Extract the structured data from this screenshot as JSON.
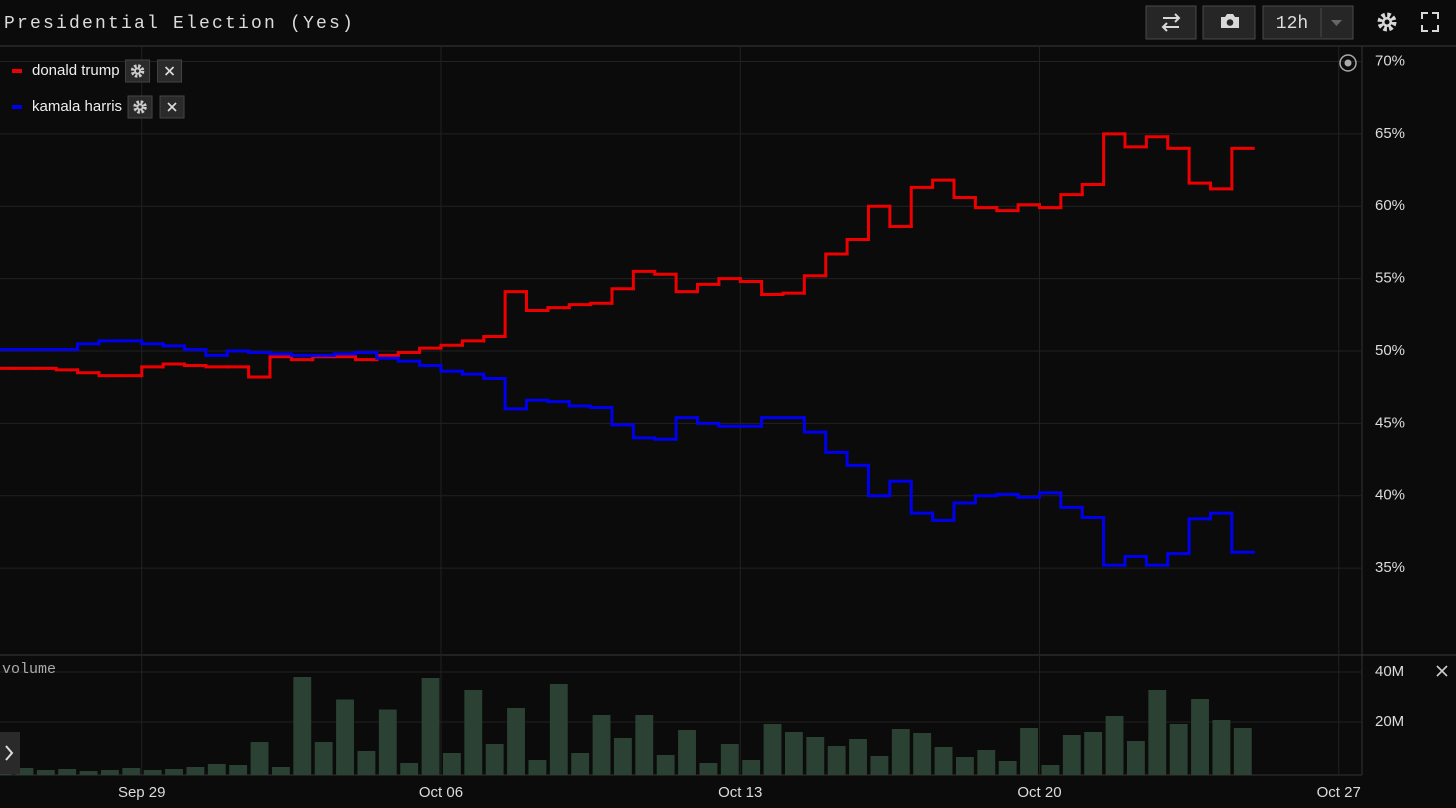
{
  "toolbar": {
    "interval": "12h"
  },
  "chart_data": [
    {
      "type": "line",
      "title": "Presidential Election (Yes)",
      "categories": [
        null,
        null,
        null,
        null,
        null,
        null,
        null,
        "Sep 29",
        null,
        null,
        null,
        null,
        null,
        null,
        null,
        null,
        null,
        null,
        null,
        null,
        null,
        "Oct 06",
        null,
        null,
        null,
        null,
        null,
        null,
        null,
        null,
        null,
        null,
        null,
        null,
        null,
        "Oct 13",
        null,
        null,
        null,
        null,
        null,
        null,
        null,
        null,
        null,
        null,
        null,
        null,
        null,
        "Oct 20",
        null,
        null,
        null,
        null,
        null,
        null,
        null,
        null,
        null,
        null,
        null,
        null,
        null,
        "Oct 27"
      ],
      "series": [
        {
          "name": "donald trump",
          "color": "#ee0000",
          "values": [
            48.8,
            48.8,
            48.8,
            48.7,
            48.5,
            48.3,
            48.3,
            48.9,
            49.1,
            49.0,
            48.9,
            48.9,
            48.2,
            49.6,
            49.4,
            49.6,
            49.6,
            49.4,
            49.7,
            49.9,
            50.2,
            50.4,
            50.7,
            51.0,
            54.1,
            52.8,
            53.0,
            53.2,
            53.3,
            54.3,
            55.5,
            55.3,
            54.1,
            54.6,
            55.0,
            54.8,
            53.9,
            54.0,
            55.2,
            56.7,
            57.7,
            60.0,
            58.6,
            61.3,
            61.8,
            60.6,
            59.9,
            59.7,
            60.1,
            59.9,
            60.8,
            61.5,
            65.0,
            64.1,
            64.8,
            64.0,
            61.6,
            61.2,
            64.0,
            null,
            null,
            null,
            null,
            null
          ]
        },
        {
          "name": "kamala harris",
          "color": "#0000ee",
          "values": [
            50.1,
            50.1,
            50.1,
            50.1,
            50.5,
            50.7,
            50.7,
            50.5,
            50.35,
            50.1,
            49.7,
            50.0,
            49.9,
            49.8,
            49.7,
            49.7,
            49.8,
            49.9,
            49.5,
            49.3,
            49.0,
            48.6,
            48.4,
            48.1,
            46.0,
            46.6,
            46.5,
            46.2,
            46.1,
            44.9,
            44.0,
            43.9,
            45.4,
            45.0,
            44.8,
            44.8,
            45.4,
            45.4,
            44.4,
            43.0,
            42.1,
            40.0,
            41.0,
            38.8,
            38.3,
            39.5,
            40.0,
            40.1,
            39.9,
            40.2,
            39.2,
            38.5,
            35.2,
            35.8,
            35.2,
            36.0,
            38.4,
            38.8,
            36.1,
            null,
            null,
            null,
            null,
            null
          ]
        }
      ],
      "ylim": [
        29,
        71
      ],
      "yticks": [
        {
          "value": 35,
          "label": "35%"
        },
        {
          "value": 40,
          "label": "40%"
        },
        {
          "value": 45,
          "label": "45%"
        },
        {
          "value": 50,
          "label": "50%"
        },
        {
          "value": 55,
          "label": "55%"
        },
        {
          "value": 60,
          "label": "60%"
        },
        {
          "value": 65,
          "label": "65%"
        },
        {
          "value": 70,
          "label": "70%"
        }
      ],
      "grid": true,
      "step": true
    },
    {
      "type": "bar",
      "title": "volume",
      "color": "#2b4133",
      "values": [
        1.2,
        1.6,
        0.8,
        1.2,
        0.4,
        0.8,
        1.6,
        0.8,
        1.2,
        2.0,
        3.2,
        2.8,
        12,
        2,
        38,
        12,
        29,
        8.4,
        25,
        3.6,
        37.6,
        7.6,
        32.8,
        11.2,
        25.6,
        4.8,
        35.2,
        7.6,
        22.8,
        13.6,
        22.8,
        6.8,
        16.8,
        3.6,
        11.2,
        4.8,
        19.2,
        16,
        14,
        10.4,
        13.2,
        6.4,
        17.2,
        15.6,
        10,
        6,
        8.8,
        4.4,
        17.6,
        2.8,
        14.8,
        16,
        22.4,
        12.4,
        32.8,
        19.2,
        29.2,
        20.8,
        17.6,
        null,
        null,
        null,
        null,
        null
      ],
      "ylim": [
        0,
        46
      ],
      "yticks": [
        {
          "value": 20,
          "label": "20M"
        },
        {
          "value": 40,
          "label": "40M"
        }
      ],
      "grid": true
    }
  ]
}
